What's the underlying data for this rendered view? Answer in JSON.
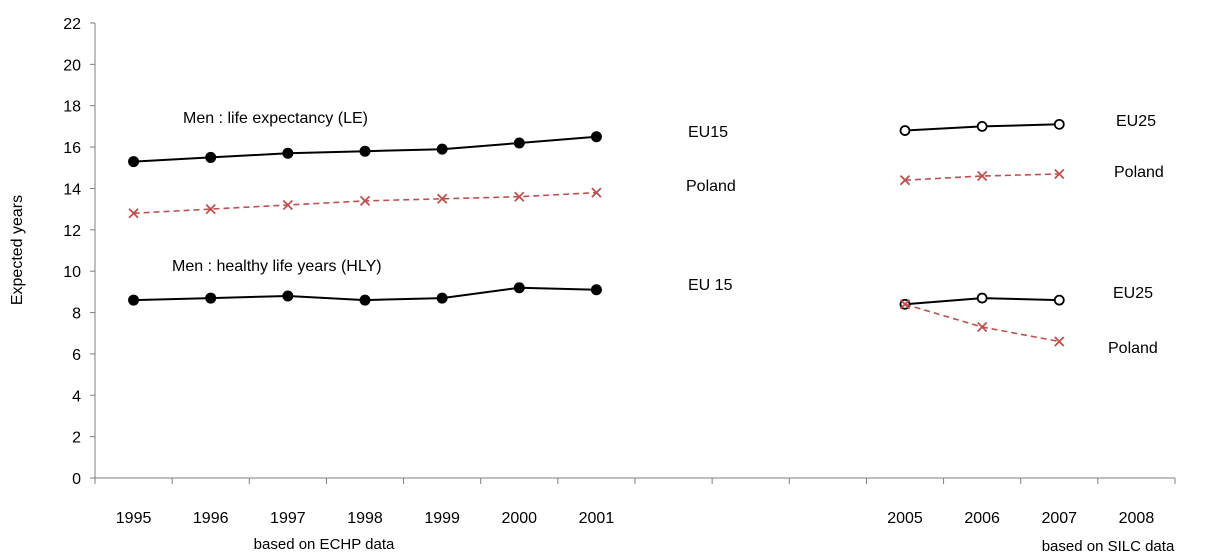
{
  "chart_data": {
    "type": "line",
    "ylabel": "Expected years",
    "ylim": [
      0,
      22
    ],
    "y_ticks": [
      "0",
      "2",
      "4",
      "6",
      "8",
      "10",
      "12",
      "14",
      "16",
      "18",
      "20",
      "22"
    ],
    "categories": [
      "1995",
      "1996",
      "1997",
      "1998",
      "1999",
      "2000",
      "2001",
      "",
      "",
      "",
      "2005",
      "2006",
      "2007",
      "2008"
    ],
    "grid": false,
    "x_notes": {
      "left": "based on ECHP data",
      "right": "based on SILC data"
    },
    "series": [
      {
        "group": "le",
        "style": "solid-filled",
        "color": "#000000",
        "x": [
          "1995",
          "1996",
          "1997",
          "1998",
          "1999",
          "2000",
          "2001"
        ],
        "values": [
          15.3,
          15.5,
          15.7,
          15.8,
          15.9,
          16.2,
          16.5
        ]
      },
      {
        "group": "le",
        "style": "dashed-cross",
        "color": "#c0504d",
        "x": [
          "1995",
          "1996",
          "1997",
          "1998",
          "1999",
          "2000",
          "2001"
        ],
        "values": [
          12.8,
          13.0,
          13.2,
          13.4,
          13.5,
          13.6,
          13.8
        ]
      },
      {
        "group": "le",
        "style": "solid-open",
        "color": "#000000",
        "x": [
          "2005",
          "2006",
          "2007"
        ],
        "values": [
          16.8,
          17.0,
          17.1
        ]
      },
      {
        "group": "le",
        "style": "dashed-cross",
        "color": "#c0504d",
        "x": [
          "2005",
          "2006",
          "2007"
        ],
        "values": [
          14.4,
          14.6,
          14.7
        ]
      },
      {
        "group": "hly",
        "style": "solid-filled",
        "color": "#000000",
        "x": [
          "1995",
          "1996",
          "1997",
          "1998",
          "1999",
          "2000",
          "2001"
        ],
        "values": [
          8.6,
          8.7,
          8.8,
          8.6,
          8.7,
          9.2,
          9.1
        ]
      },
      {
        "group": "hly",
        "style": "solid-open",
        "color": "#000000",
        "x": [
          "2005",
          "2006",
          "2007"
        ],
        "values": [
          8.4,
          8.7,
          8.6
        ]
      },
      {
        "group": "hly",
        "style": "dashed-cross",
        "color": "#c0504d",
        "x": [
          "2005",
          "2006",
          "2007"
        ],
        "values": [
          8.4,
          7.3,
          6.6
        ]
      }
    ],
    "annotations": [
      {
        "id": "le-title",
        "text": "Men  :  life expectancy (LE)"
      },
      {
        "id": "hly-title",
        "text": "Men :  healthy life years (HLY)"
      },
      {
        "id": "eu15-le",
        "text": "EU15"
      },
      {
        "id": "poland-le-left",
        "text": "Poland"
      },
      {
        "id": "eu15-hly",
        "text": "EU 15"
      },
      {
        "id": "eu25-le",
        "text": "EU25"
      },
      {
        "id": "poland-le-right",
        "text": "Poland"
      },
      {
        "id": "eu25-hly",
        "text": "EU25"
      },
      {
        "id": "poland-hly-right",
        "text": "Poland"
      }
    ]
  }
}
